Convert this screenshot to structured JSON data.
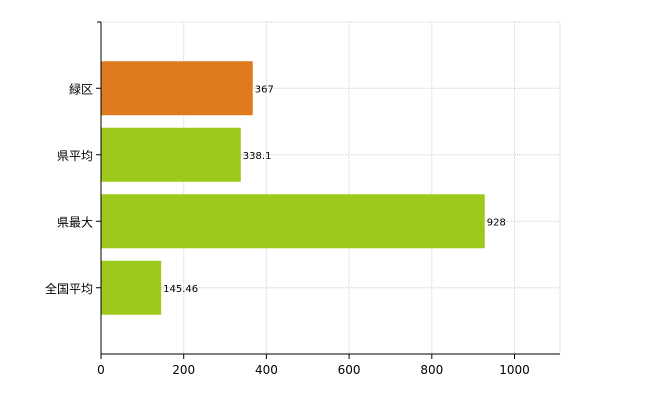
{
  "chart_data": {
    "type": "bar",
    "orientation": "horizontal",
    "categories": [
      "緑区",
      "県平均",
      "県最大",
      "全国平均"
    ],
    "values": [
      367,
      338.1,
      928,
      145.46
    ],
    "data_labels": [
      "367",
      "338.1",
      "928",
      "145.46"
    ],
    "bar_colors": [
      "#e07a1e",
      "#9dc81c",
      "#9dc81c",
      "#9dc81c"
    ],
    "title": "",
    "xlabel": "",
    "ylabel": "",
    "xlim": [
      0,
      1110
    ],
    "xticks": [
      0,
      200,
      400,
      600,
      800,
      1000
    ],
    "xtick_labels": [
      "0",
      "200",
      "400",
      "600",
      "800",
      "1000"
    ],
    "grid": true,
    "legend": false
  }
}
